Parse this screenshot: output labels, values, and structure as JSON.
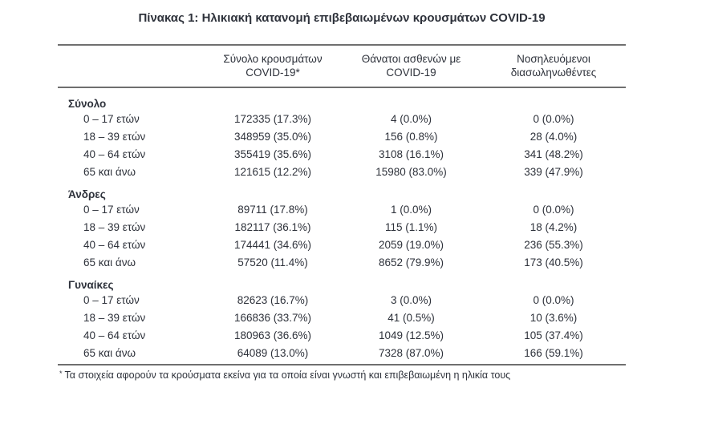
{
  "title": "Πίνακας 1: Ηλικιακή κατανομή επιβεβαιωμένων κρουσμάτων COVID-19",
  "colors": {
    "text": "#2e323b",
    "rule": "#6f6f6f",
    "background": "#ffffff"
  },
  "table": {
    "headers": {
      "cases_line1": "Σύνολο κρουσμάτων",
      "cases_line2": "COVID-19*",
      "deaths_line1": "Θάνατοι ασθενών με",
      "deaths_line2": "COVID-19",
      "intubated_line1": "Νοσηλευόμενοι",
      "intubated_line2": "διασωληνωθέντες"
    },
    "sections": [
      {
        "name": "Σύνολο",
        "rows": [
          {
            "label": "0 – 17 ετών",
            "cases": "172335 (17.3%)",
            "deaths": "4 (0.0%)",
            "intubated": "0 (0.0%)"
          },
          {
            "label": "18 – 39 ετών",
            "cases": "348959 (35.0%)",
            "deaths": "156 (0.8%)",
            "intubated": "28 (4.0%)"
          },
          {
            "label": "40 – 64 ετών",
            "cases": "355419 (35.6%)",
            "deaths": "3108 (16.1%)",
            "intubated": "341 (48.2%)"
          },
          {
            "label": "65 και άνω",
            "cases": "121615 (12.2%)",
            "deaths": "15980 (83.0%)",
            "intubated": "339 (47.9%)"
          }
        ]
      },
      {
        "name": "Άνδρες",
        "rows": [
          {
            "label": "0 – 17 ετών",
            "cases": "89711 (17.8%)",
            "deaths": "1 (0.0%)",
            "intubated": "0 (0.0%)"
          },
          {
            "label": "18 – 39 ετών",
            "cases": "182117 (36.1%)",
            "deaths": "115 (1.1%)",
            "intubated": "18 (4.2%)"
          },
          {
            "label": "40 – 64 ετών",
            "cases": "174441 (34.6%)",
            "deaths": "2059 (19.0%)",
            "intubated": "236 (55.3%)"
          },
          {
            "label": "65 και άνω",
            "cases": "57520 (11.4%)",
            "deaths": "8652 (79.9%)",
            "intubated": "173 (40.5%)"
          }
        ]
      },
      {
        "name": "Γυναίκες",
        "rows": [
          {
            "label": "0 – 17 ετών",
            "cases": "82623 (16.7%)",
            "deaths": "3 (0.0%)",
            "intubated": "0 (0.0%)"
          },
          {
            "label": "18 – 39 ετών",
            "cases": "166836 (33.7%)",
            "deaths": "41 (0.5%)",
            "intubated": "10 (3.6%)"
          },
          {
            "label": "40 – 64 ετών",
            "cases": "180963 (36.6%)",
            "deaths": "1049 (12.5%)",
            "intubated": "105 (37.4%)"
          },
          {
            "label": "65 και άνω",
            "cases": "64089 (13.0%)",
            "deaths": "7328 (87.0%)",
            "intubated": "166 (59.1%)"
          }
        ]
      }
    ],
    "footnote_marker": "*",
    "footnote": "Τα στοιχεία αφορούν τα κρούσματα εκείνα για τα οποία είναι γνωστή και επιβεβαιωμένη η ηλικία τους"
  }
}
